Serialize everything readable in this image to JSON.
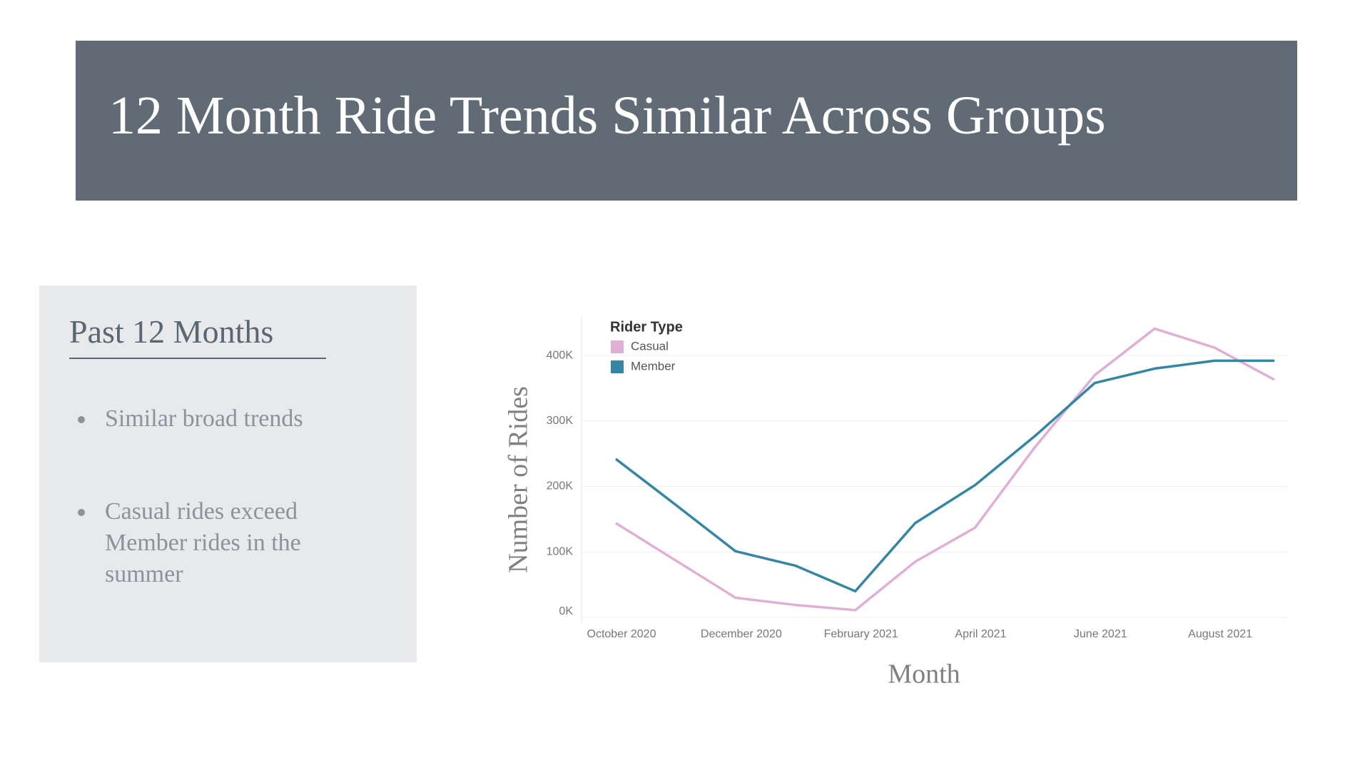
{
  "header": {
    "title": "12 Month Ride Trends Similar Across Groups"
  },
  "panel": {
    "heading": "Past 12 Months",
    "bullets": [
      "Similar broad trends",
      "Casual rides exceed Member rides in the summer"
    ]
  },
  "chart_data": {
    "type": "line",
    "ylabel": "Number of Rides",
    "xlabel": "Month",
    "legend_title": "Rider Type",
    "categories": [
      "October 2020",
      null,
      "December 2020",
      null,
      "February 2021",
      null,
      "April 2021",
      null,
      "June 2021",
      null,
      "August 2021",
      null
    ],
    "series": [
      {
        "name": "Casual",
        "color": "#e0afd4",
        "values": [
          144000,
          87000,
          30000,
          19000,
          11000,
          85000,
          137000,
          260000,
          370000,
          441000,
          412000,
          363000
        ]
      },
      {
        "name": "Member",
        "color": "#3586a3",
        "values": [
          242000,
          172000,
          101000,
          79000,
          40000,
          144000,
          202000,
          277000,
          358000,
          380000,
          392000,
          392000
        ]
      }
    ],
    "ylim": [
      0,
      460000
    ],
    "yticks": [
      {
        "value": 0,
        "label": "0K"
      },
      {
        "value": 100000,
        "label": "100K"
      },
      {
        "value": 200000,
        "label": "200K"
      },
      {
        "value": 300000,
        "label": "300K"
      },
      {
        "value": 400000,
        "label": "400K"
      }
    ],
    "grid": true,
    "legend": "upper left"
  }
}
